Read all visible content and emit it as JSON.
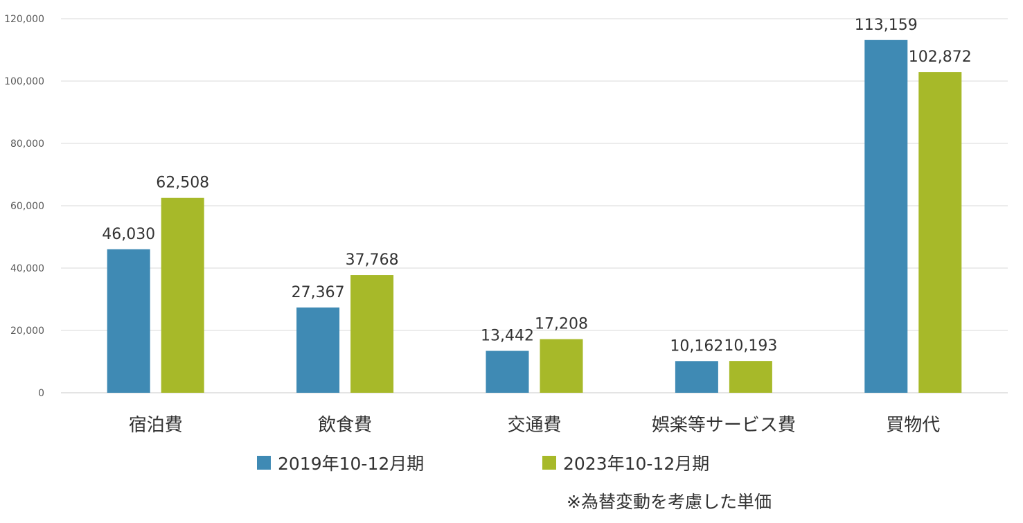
{
  "chart_data": {
    "type": "bar",
    "categories": [
      "宿泊費",
      "飲食費",
      "交通費",
      "娯楽等サービス費",
      "買物代"
    ],
    "series": [
      {
        "name": "2019年10-12月期",
        "values": [
          46030,
          27367,
          13442,
          10162,
          113159
        ],
        "color": "#3f8ab4"
      },
      {
        "name": "2023年10-12月期",
        "values": [
          62508,
          37768,
          17208,
          10193,
          102872
        ],
        "color": "#a7b929"
      }
    ],
    "ylim": [
      0,
      120000
    ],
    "yticks": [
      0,
      20000,
      40000,
      60000,
      80000,
      100000,
      120000
    ],
    "grid": true,
    "legend": "bottom",
    "data_labels": true
  },
  "note": "※為替変動を考慮した単価"
}
